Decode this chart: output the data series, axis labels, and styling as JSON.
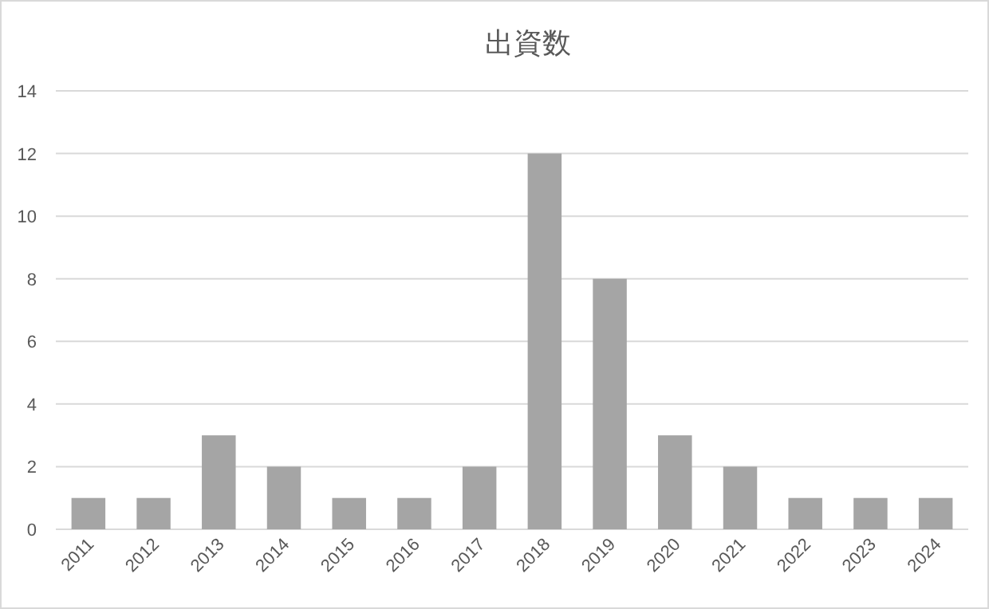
{
  "chart_data": {
    "type": "bar",
    "title": "出資数",
    "categories": [
      "2011",
      "2012",
      "2013",
      "2014",
      "2015",
      "2016",
      "2017",
      "2018",
      "2019",
      "2020",
      "2021",
      "2022",
      "2023",
      "2024"
    ],
    "values": [
      1,
      1,
      3,
      2,
      1,
      1,
      2,
      12,
      8,
      3,
      2,
      1,
      1,
      1
    ],
    "color": "#a5a5a5",
    "ylim": [
      0,
      14
    ],
    "yticks": [
      0,
      2,
      4,
      6,
      8,
      10,
      12,
      14
    ],
    "grid": "y"
  }
}
